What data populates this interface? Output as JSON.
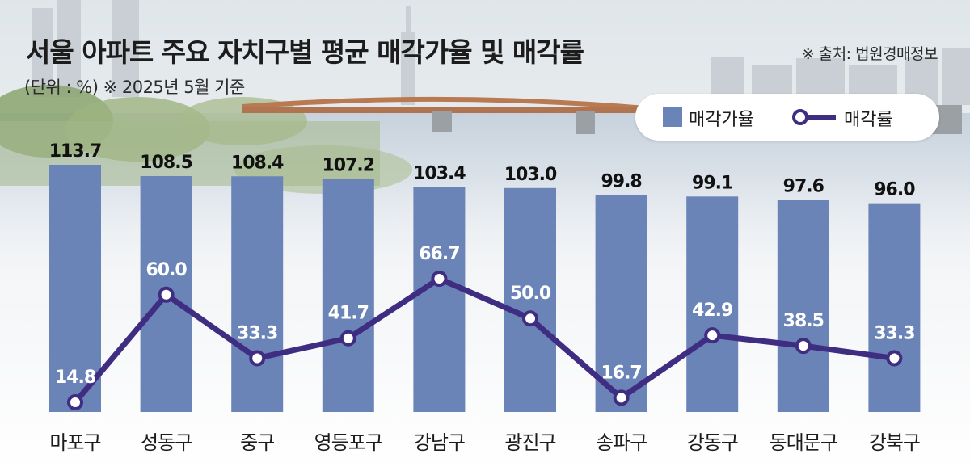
{
  "header": {
    "title": "서울 아파트 주요 자치구별 평균 매각가율 및 매각률",
    "subtitle": "(단위 : %) ※ 2025년 5월 기준",
    "source": "※ 출처: 법원경매정보"
  },
  "legend": {
    "bar_label": "매각가율",
    "line_label": "매각률",
    "placement": "top-right"
  },
  "colors": {
    "bar": "#6b84b8",
    "line": "#3f2d82",
    "marker_fill": "#ffffff",
    "bar_value_text": "#111111",
    "line_value_text": "#ffffff"
  },
  "chart_data": {
    "type": "bar",
    "categories": [
      "마포구",
      "성동구",
      "중구",
      "영등포구",
      "강남구",
      "광진구",
      "송파구",
      "강동구",
      "동대문구",
      "강북구"
    ],
    "series": [
      {
        "name": "매각가율",
        "type": "bar",
        "values": [
          113.7,
          108.5,
          108.4,
          107.2,
          103.4,
          103.0,
          99.8,
          99.1,
          97.6,
          96.0
        ],
        "labels": [
          "113.7",
          "108.5",
          "108.4",
          "107.2",
          "103.4",
          "103.0",
          "99.8",
          "99.1",
          "97.6",
          "96.0"
        ]
      },
      {
        "name": "매각률",
        "type": "line",
        "values": [
          14.8,
          60.0,
          33.3,
          41.7,
          66.7,
          50.0,
          16.7,
          42.9,
          38.5,
          33.3
        ],
        "labels": [
          "14.8",
          "60.0",
          "33.3",
          "41.7",
          "66.7",
          "50.0",
          "16.7",
          "42.9",
          "38.5",
          "33.3"
        ]
      }
    ],
    "xlabel": "",
    "ylabel": "",
    "grid": false
  }
}
